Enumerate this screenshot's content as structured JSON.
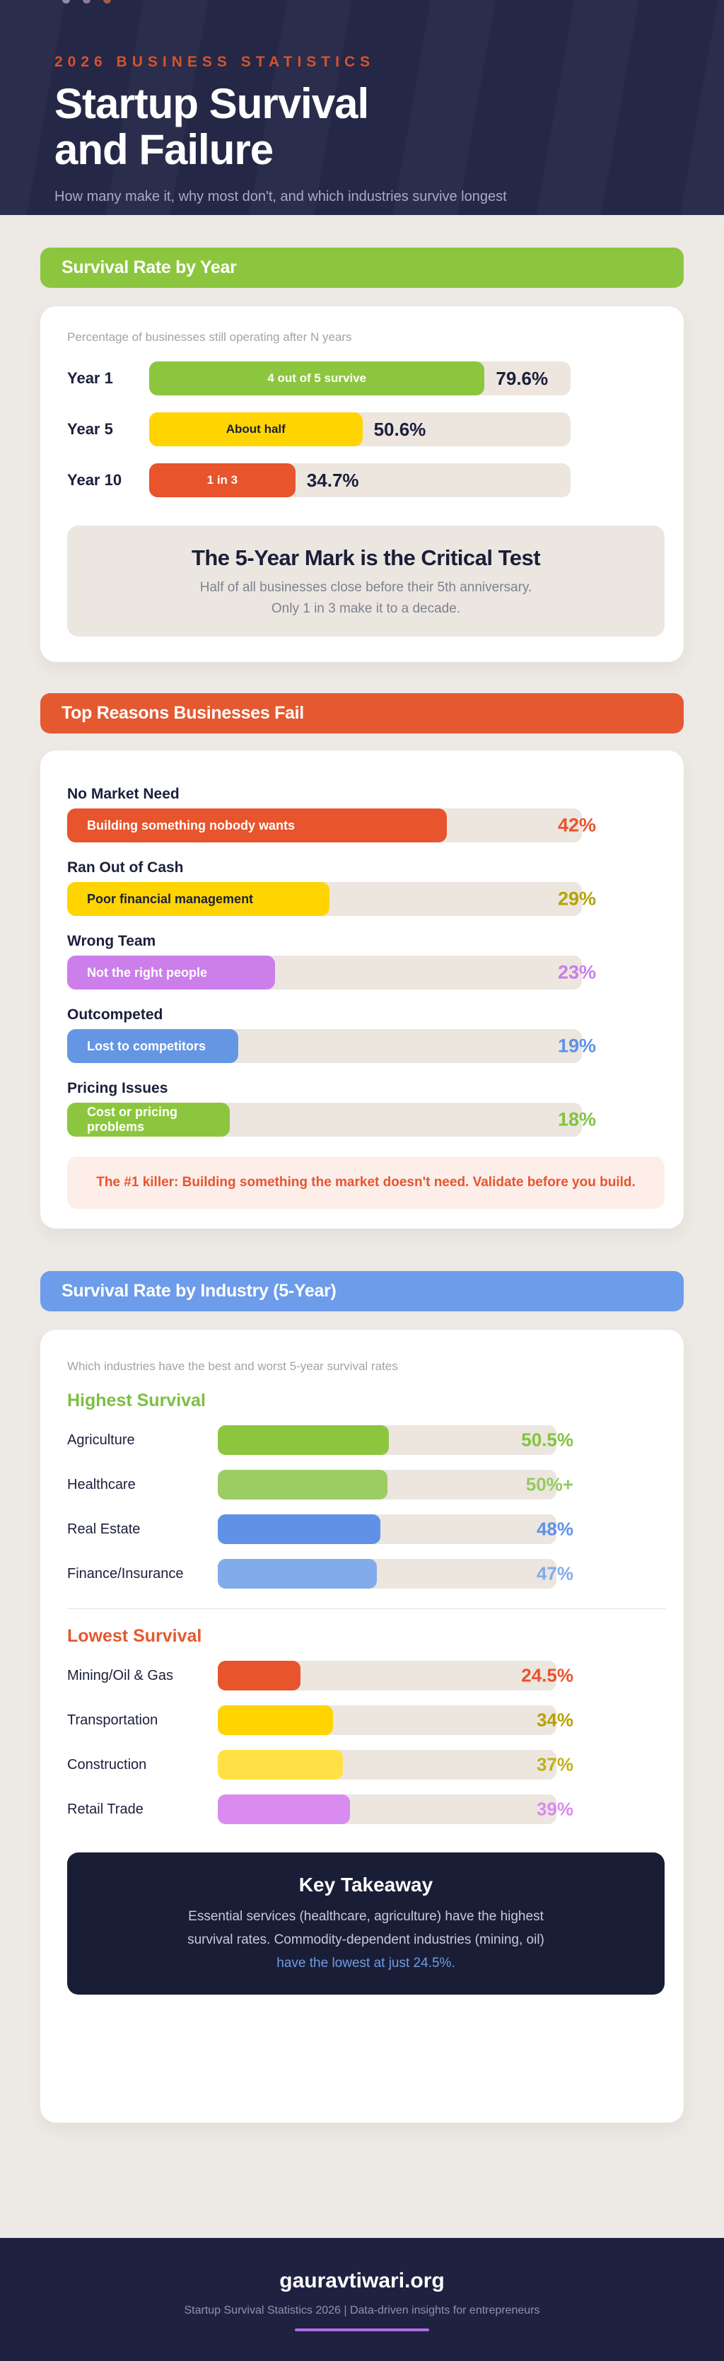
{
  "hero": {
    "eyebrow": "2026 BUSINESS STATISTICS",
    "title_line1": "Startup Survival",
    "title_line2": "and Failure",
    "subtitle": "How many make it, why most don't, and which industries survive longest",
    "dot_colors": [
      "#8A8FA8",
      "#8E7B9C",
      "#A85C3E"
    ]
  },
  "sections": {
    "year": {
      "header": "Survival Rate by Year",
      "note": "Percentage of businesses still operating after N years",
      "callout": {
        "title": "The 5-Year Mark is the Critical Test",
        "line1": "Half of all businesses close before their 5th anniversary.",
        "line2": "Only 1 in 3 make it to a decade."
      }
    },
    "reasons": {
      "header": "Top Reasons Businesses Fail",
      "callout": "The #1 killer: Building something the market doesn't need. Validate before you build."
    },
    "industry": {
      "header": "Survival Rate by Industry (5-Year)",
      "note": "Which industries have the best and worst 5-year survival rates",
      "highest_heading": "Highest Survival",
      "lowest_heading": "Lowest Survival",
      "takeaway": {
        "title": "Key Takeaway",
        "line1": "Essential services (healthcare, agriculture) have the highest",
        "line2": "survival rates. Commodity-dependent industries (mining, oil)",
        "line3": "have the lowest at just 24.5%."
      }
    }
  },
  "footer": {
    "site": "gauravtiwari.org",
    "tagline": "Startup Survival Statistics 2026 | Data-driven insights for entrepreneurs"
  },
  "chart_data": [
    {
      "type": "bar",
      "title": "Survival Rate by Year",
      "categories": [
        "Year 1",
        "Year 5",
        "Year 10"
      ],
      "values": [
        79.6,
        50.6,
        34.7
      ],
      "value_labels": [
        "79.6%",
        "50.6%",
        "34.7%"
      ],
      "bar_labels": [
        "4 out of 5 survive",
        "About half",
        "1 in 3"
      ],
      "bar_colors": [
        "#8CC63E",
        "#FFD400",
        "#E8542C"
      ],
      "bar_label_colors": [
        "#FFFFFF",
        "#1B1F3B",
        "#FFFFFF"
      ],
      "width_pct": [
        79.6,
        50.6,
        34.7
      ],
      "xlim": [
        0,
        100
      ],
      "ylabel": "",
      "xlabel": ""
    },
    {
      "type": "bar",
      "title": "Top Reasons Businesses Fail",
      "categories": [
        "No Market Need",
        "Ran Out of Cash",
        "Wrong Team",
        "Outcompeted",
        "Pricing Issues"
      ],
      "values": [
        42,
        29,
        23,
        19,
        18
      ],
      "value_labels": [
        "42%",
        "29%",
        "23%",
        "19%",
        "18%"
      ],
      "bar_labels": [
        "Building something nobody wants",
        "Poor financial management",
        "Not the right people",
        "Lost to competitors",
        "Cost or pricing problems"
      ],
      "bar_colors": [
        "#E8542C",
        "#FFD400",
        "#CC7EEA",
        "#6596E3",
        "#8CC63E"
      ],
      "bar_label_colors": [
        "#FFFFFF",
        "#1B1F3B",
        "#FFFFFF",
        "#FFFFFF",
        "#FFFFFF"
      ],
      "value_colors": [
        "#E8542C",
        "#B5A300",
        "#C87EEB",
        "#5F92E6",
        "#82C341"
      ],
      "width_pct": [
        73.7,
        50.9,
        40.4,
        33.3,
        31.6
      ],
      "xlim": [
        0,
        57
      ],
      "ylabel": "",
      "xlabel": ""
    },
    {
      "type": "bar",
      "title": "Survival Rate by Industry (5-Year)",
      "groups": [
        {
          "name": "Highest Survival",
          "categories": [
            "Agriculture",
            "Healthcare",
            "Real Estate",
            "Finance/Insurance"
          ],
          "values": [
            50.5,
            50,
            48,
            47
          ],
          "value_labels": [
            "50.5%",
            "50%+",
            "48%",
            "47%"
          ],
          "bar_colors": [
            "#8CC63E",
            "#9CCD63",
            "#5F92E6",
            "#82ABEC"
          ],
          "value_colors": [
            "#82C341",
            "#95CB5E",
            "#5F92E6",
            "#82ABEC"
          ],
          "width_pct": [
            50.5,
            50,
            48,
            47
          ]
        },
        {
          "name": "Lowest Survival",
          "categories": [
            "Mining/Oil & Gas",
            "Transportation",
            "Construction",
            "Retail Trade"
          ],
          "values": [
            24.5,
            34,
            37,
            39
          ],
          "value_labels": [
            "24.5%",
            "34%",
            "37%",
            "39%"
          ],
          "bar_colors": [
            "#E8542C",
            "#FFD400",
            "#FFE146",
            "#D98BF0"
          ],
          "value_colors": [
            "#E8542C",
            "#B5A300",
            "#BFB117",
            "#D98BF0"
          ],
          "width_pct": [
            24.5,
            34,
            37,
            39
          ]
        }
      ],
      "xlim": [
        0,
        100
      ],
      "ylabel": "",
      "xlabel": ""
    }
  ]
}
